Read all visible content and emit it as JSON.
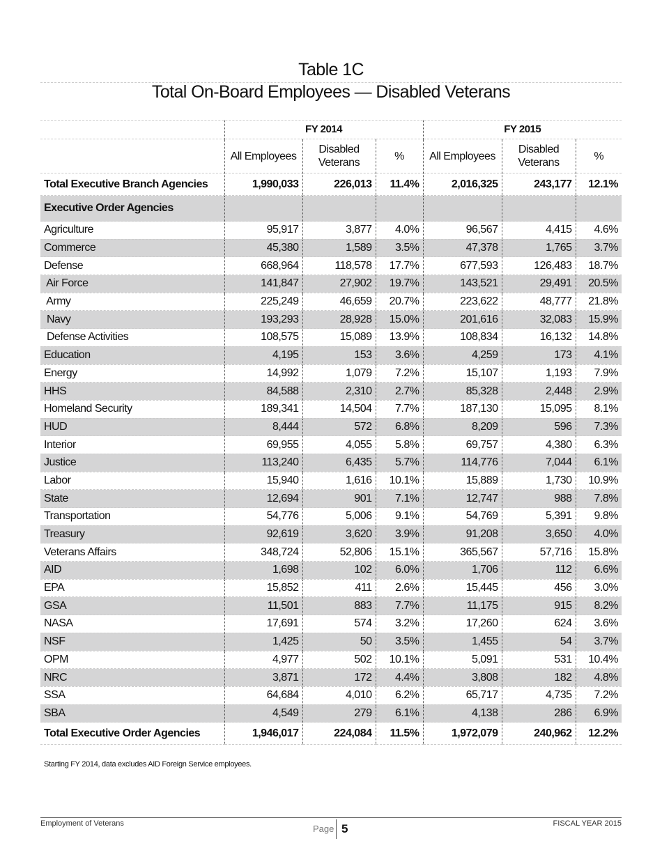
{
  "title": "Table 1C",
  "subtitle": "Total On-Board Employees — Disabled Veterans",
  "header": {
    "groups": [
      "FY 2014",
      "FY 2015"
    ],
    "columns": [
      "All Employees",
      "Disabled Veterans",
      "%",
      "All Employees",
      "Disabled Veterans",
      "%"
    ]
  },
  "total_branch": {
    "label": "Total Executive Branch Agencies",
    "values": [
      "1,990,033",
      "226,013",
      "11.4%",
      "2,016,325",
      "243,177",
      "12.1%"
    ]
  },
  "section_label": "Executive Order Agencies",
  "rows": [
    {
      "label": "Agriculture",
      "values": [
        "95,917",
        "3,877",
        "4.0%",
        "96,567",
        "4,415",
        "4.6%"
      ]
    },
    {
      "label": "Commerce",
      "values": [
        "45,380",
        "1,589",
        "3.5%",
        "47,378",
        "1,765",
        "3.7%"
      ]
    },
    {
      "label": "Defense",
      "values": [
        "668,964",
        "118,578",
        "17.7%",
        "677,593",
        "126,483",
        "18.7%"
      ]
    },
    {
      "label": " Air Force",
      "values": [
        "141,847",
        "27,902",
        "19.7%",
        "143,521",
        "29,491",
        "20.5%"
      ]
    },
    {
      "label": " Army",
      "values": [
        "225,249",
        "46,659",
        "20.7%",
        "223,622",
        "48,777",
        "21.8%"
      ]
    },
    {
      "label": " Navy",
      "values": [
        "193,293",
        "28,928",
        "15.0%",
        "201,616",
        "32,083",
        "15.9%"
      ]
    },
    {
      "label": " Defense Activities",
      "values": [
        "108,575",
        "15,089",
        "13.9%",
        "108,834",
        "16,132",
        "14.8%"
      ]
    },
    {
      "label": "Education",
      "values": [
        "4,195",
        "153",
        "3.6%",
        "4,259",
        "173",
        "4.1%"
      ]
    },
    {
      "label": "Energy",
      "values": [
        "14,992",
        "1,079",
        "7.2%",
        "15,107",
        "1,193",
        "7.9%"
      ]
    },
    {
      "label": "HHS",
      "values": [
        "84,588",
        "2,310",
        "2.7%",
        "85,328",
        "2,448",
        "2.9%"
      ]
    },
    {
      "label": "Homeland Security",
      "values": [
        "189,341",
        "14,504",
        "7.7%",
        "187,130",
        "15,095",
        "8.1%"
      ]
    },
    {
      "label": "HUD",
      "values": [
        "8,444",
        "572",
        "6.8%",
        "8,209",
        "596",
        "7.3%"
      ]
    },
    {
      "label": "Interior",
      "values": [
        "69,955",
        "4,055",
        "5.8%",
        "69,757",
        "4,380",
        "6.3%"
      ]
    },
    {
      "label": "Justice",
      "values": [
        "113,240",
        "6,435",
        "5.7%",
        "114,776",
        "7,044",
        "6.1%"
      ]
    },
    {
      "label": "Labor",
      "values": [
        "15,940",
        "1,616",
        "10.1%",
        "15,889",
        "1,730",
        "10.9%"
      ]
    },
    {
      "label": "State",
      "values": [
        "12,694",
        "901",
        "7.1%",
        "12,747",
        "988",
        "7.8%"
      ]
    },
    {
      "label": "Transportation",
      "values": [
        "54,776",
        "5,006",
        "9.1%",
        "54,769",
        "5,391",
        "9.8%"
      ]
    },
    {
      "label": "Treasury",
      "values": [
        "92,619",
        "3,620",
        "3.9%",
        "91,208",
        "3,650",
        "4.0%"
      ]
    },
    {
      "label": "Veterans Affairs",
      "values": [
        "348,724",
        "52,806",
        "15.1%",
        "365,567",
        "57,716",
        "15.8%"
      ]
    },
    {
      "label": "AID",
      "values": [
        "1,698",
        "102",
        "6.0%",
        "1,706",
        "112",
        "6.6%"
      ]
    },
    {
      "label": "EPA",
      "values": [
        "15,852",
        "411",
        "2.6%",
        "15,445",
        "456",
        "3.0%"
      ]
    },
    {
      "label": "GSA",
      "values": [
        "11,501",
        "883",
        "7.7%",
        "11,175",
        "915",
        "8.2%"
      ]
    },
    {
      "label": "NASA",
      "values": [
        "17,691",
        "574",
        "3.2%",
        "17,260",
        "624",
        "3.6%"
      ]
    },
    {
      "label": "NSF",
      "values": [
        "1,425",
        "50",
        "3.5%",
        "1,455",
        "54",
        "3.7%"
      ]
    },
    {
      "label": "OPM",
      "values": [
        "4,977",
        "502",
        "10.1%",
        "5,091",
        "531",
        "10.4%"
      ]
    },
    {
      "label": "NRC",
      "values": [
        "3,871",
        "172",
        "4.4%",
        "3,808",
        "182",
        "4.8%"
      ]
    },
    {
      "label": "SSA",
      "values": [
        "64,684",
        "4,010",
        "6.2%",
        "65,717",
        "4,735",
        "7.2%"
      ]
    },
    {
      "label": "SBA",
      "values": [
        "4,549",
        "279",
        "6.1%",
        "4,138",
        "286",
        "6.9%"
      ]
    }
  ],
  "total_order": {
    "label": "Total Executive Order Agencies",
    "values": [
      "1,946,017",
      "224,084",
      "11.5%",
      "1,972,079",
      "240,962",
      "12.2%"
    ]
  },
  "note": "Starting FY 2014, data excludes AID Foreign Service employees.",
  "footer": {
    "left": "Employment of Veterans",
    "page_label": "Page",
    "page_number": "5",
    "right": "FISCAL YEAR 2015"
  },
  "colors": {
    "stripe": "#d5d5d6"
  }
}
